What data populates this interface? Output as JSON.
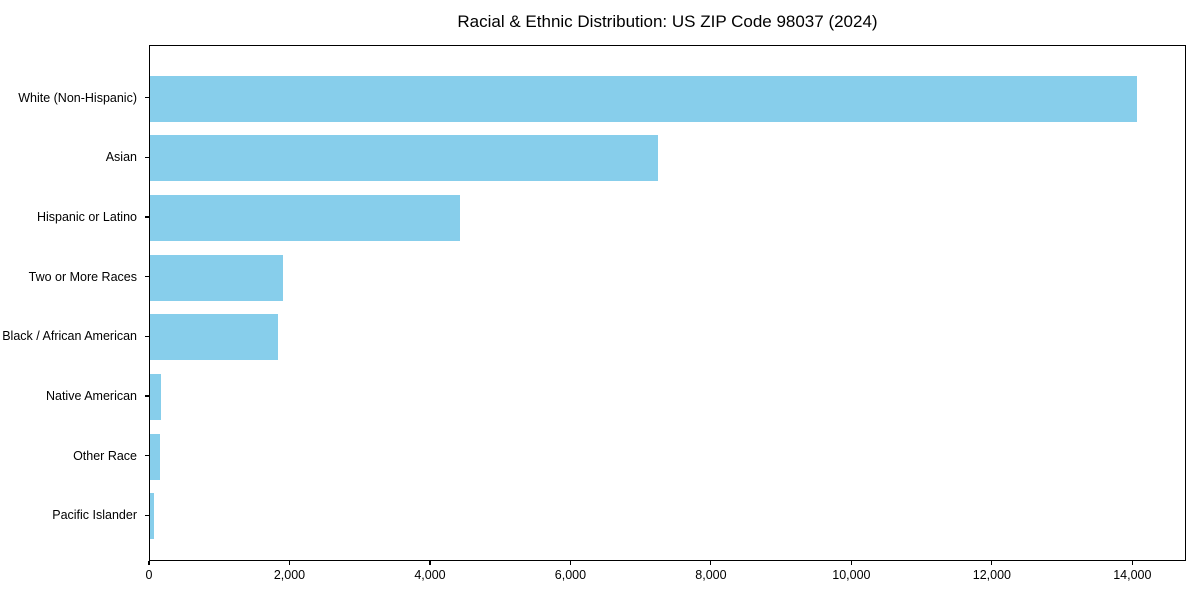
{
  "title": "Racial & Ethnic Distribution: US ZIP Code 98037 (2024)",
  "chart_data": {
    "type": "bar",
    "orientation": "horizontal",
    "title": "Racial & Ethnic Distribution: US ZIP Code 98037 (2024)",
    "xlabel": "",
    "ylabel": "",
    "categories": [
      "White (Non-Hispanic)",
      "Asian",
      "Hispanic or Latino",
      "Two or More Races",
      "Black / African American",
      "Native American",
      "Other Race",
      "Pacific Islander"
    ],
    "values": [
      14050,
      7230,
      4410,
      1890,
      1820,
      150,
      140,
      60
    ],
    "xlim": [
      0,
      14764
    ],
    "x_ticks": [
      0,
      2000,
      4000,
      6000,
      8000,
      10000,
      12000,
      14000
    ],
    "x_tick_labels": [
      "0",
      "2,000",
      "4,000",
      "6,000",
      "8,000",
      "10,000",
      "12,000",
      "14,000"
    ],
    "bar_color": "#87CEEB",
    "background_color": "#ffffff",
    "grid": false,
    "legend": null
  }
}
